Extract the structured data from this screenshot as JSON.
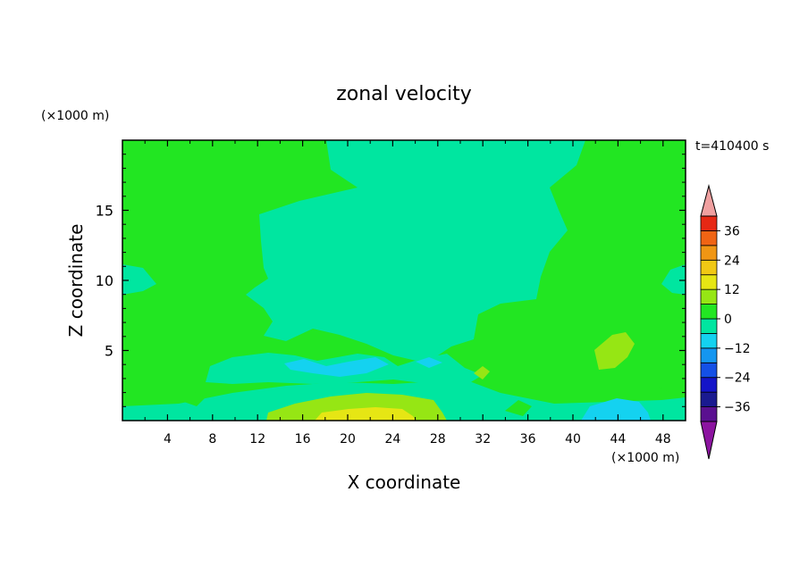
{
  "chart_data": {
    "type": "heatmap",
    "title": "zonal velocity",
    "xlabel": "X coordinate",
    "ylabel": "Z coordinate",
    "x_unit": "(×1000 m)",
    "y_unit": "(×1000 m)",
    "time_label": "t=410400 s",
    "xlim": [
      0,
      50
    ],
    "ylim": [
      0,
      20
    ],
    "x_ticks": [
      4,
      8,
      12,
      16,
      20,
      24,
      28,
      32,
      36,
      40,
      44,
      48
    ],
    "y_ticks": [
      5,
      10,
      15
    ],
    "colorbar": {
      "levels": [
        -42,
        -36,
        -30,
        -24,
        -18,
        -12,
        -6,
        0,
        6,
        12,
        18,
        24,
        30,
        36,
        42
      ],
      "tick_labels": [
        {
          "value": 36,
          "text": "36"
        },
        {
          "value": 24,
          "text": "24"
        },
        {
          "value": 12,
          "text": "12"
        },
        {
          "value": 0,
          "text": "0"
        },
        {
          "value": -12,
          "text": "−12"
        },
        {
          "value": -24,
          "text": "−24"
        },
        {
          "value": -36,
          "text": "−36"
        }
      ],
      "band_colors": [
        "#5a1090",
        "#1a1a90",
        "#1414c8",
        "#1450e6",
        "#1496f0",
        "#14d2f0",
        "#00e6a0",
        "#22e622",
        "#96e614",
        "#e6e614",
        "#f0c814",
        "#f09614",
        "#f06414",
        "#e62814"
      ],
      "over_color": "#f0a0a0",
      "under_color": "#8c14a0"
    },
    "fields": {
      "background_value_band": "0 to 6",
      "regions": [
        {
          "band": "-6 to 0",
          "description": "central upper region x≈8–40, z≈5–20"
        },
        {
          "band": "-6 to 0",
          "description": "near-surface strip z<0.5 across domain"
        },
        {
          "band": "-12 to -6",
          "description": "near surface x≈43–47"
        },
        {
          "band": "-12 to -6",
          "description": "small patches x≈16–22, z≈3.5"
        },
        {
          "band": "6 to 12",
          "description": "near surface x≈12–30, z<2"
        },
        {
          "band": "12 to 18",
          "description": "core near surface x≈17–26, z<1"
        },
        {
          "band": "6 to 12",
          "description": "patch x≈42–45, z≈4–6"
        }
      ]
    }
  }
}
